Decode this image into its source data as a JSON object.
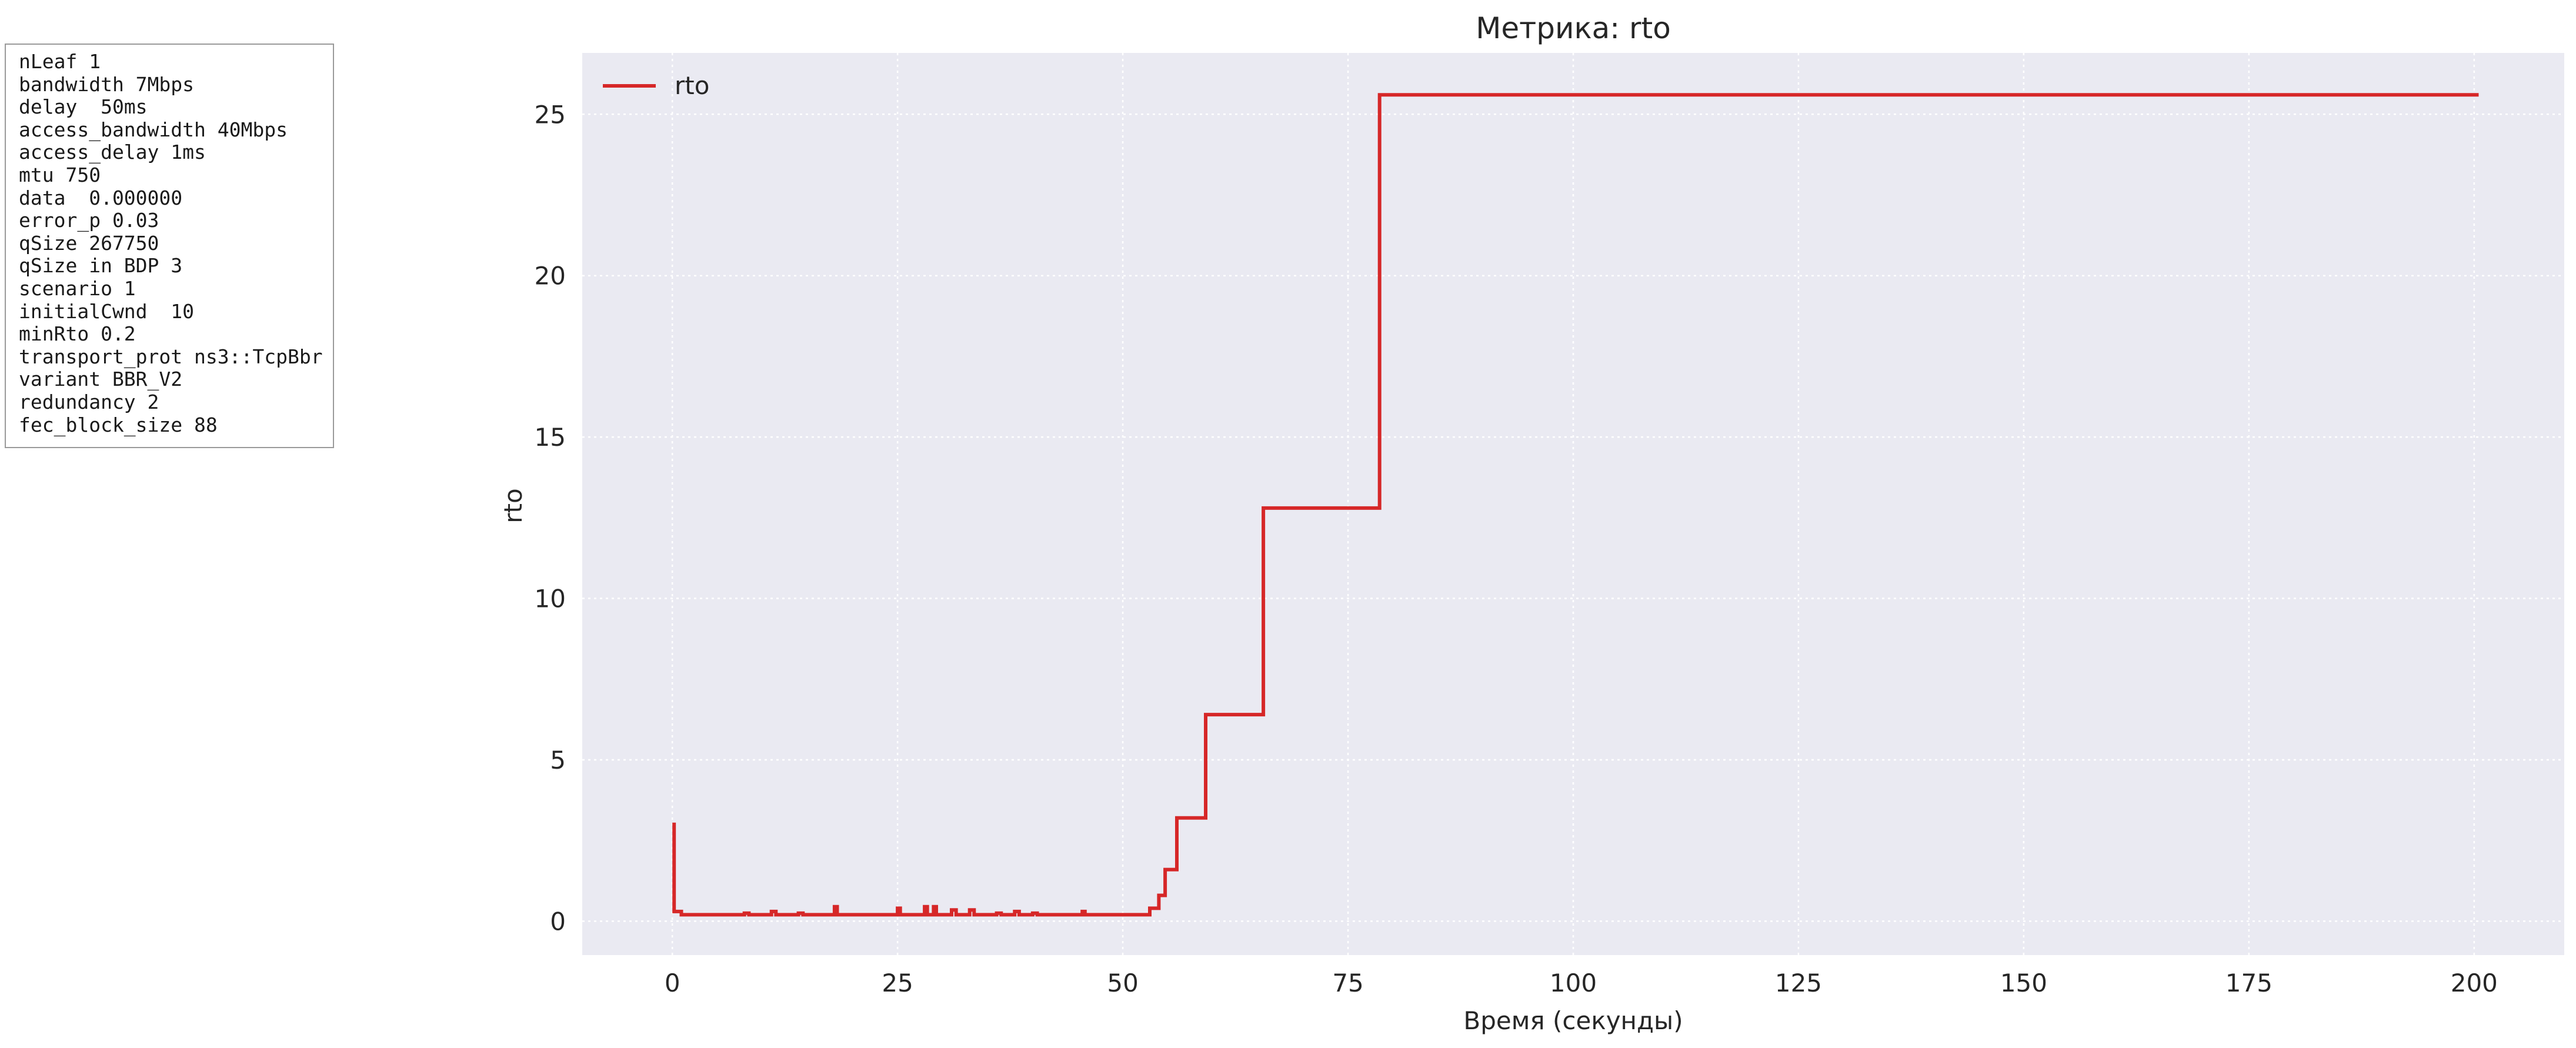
{
  "params": [
    "nLeaf 1",
    "bandwidth 7Mbps",
    "delay  50ms",
    "access_bandwidth 40Mbps",
    "access_delay 1ms",
    "mtu 750",
    "data  0.000000",
    "error_p 0.03",
    "qSize 267750",
    "qSize in BDP 3",
    "scenario 1",
    "initialCwnd  10",
    "minRto 0.2",
    "transport_prot ns3::TcpBbr",
    "variant BBR_V2",
    "redundancy 2",
    "fec_block_size 88"
  ],
  "chart_data": {
    "type": "line",
    "title": "Метрика: rto",
    "xlabel": "Время (секунды)",
    "ylabel": "rto",
    "xlim": [
      -10,
      210
    ],
    "ylim": [
      -1.05,
      26.9
    ],
    "xticks": [
      0,
      25,
      50,
      75,
      100,
      125,
      150,
      175,
      200
    ],
    "xtick_labels": [
      "0",
      "25",
      "50",
      "75",
      "100",
      "125",
      "150",
      "175",
      "200"
    ],
    "yticks": [
      0,
      5,
      10,
      15,
      20,
      25
    ],
    "ytick_labels": [
      "0",
      "5",
      "10",
      "15",
      "20",
      "25"
    ],
    "grid": true,
    "legend_position": "top-left",
    "series": [
      {
        "name": "rto",
        "color": "#d62728",
        "step": true,
        "x": [
          0,
          0.2,
          1,
          8,
          8.5,
          9,
          11,
          11.5,
          12,
          14,
          14.5,
          18,
          18.3,
          18.6,
          25,
          25.3,
          25.6,
          28,
          28.3,
          28.6,
          29,
          29.3,
          29.6,
          31,
          31.5,
          32,
          33,
          33.5,
          34,
          36,
          36.5,
          38,
          38.5,
          40,
          40.5,
          45.5,
          45.8,
          53,
          53.5,
          54,
          54.7,
          56,
          59.2,
          65.6,
          78.5,
          200.5
        ],
        "y": [
          3.0,
          0.3,
          0.2,
          0.25,
          0.2,
          0.2,
          0.3,
          0.2,
          0.2,
          0.25,
          0.2,
          0.45,
          0.2,
          0.2,
          0.4,
          0.2,
          0.2,
          0.45,
          0.2,
          0.2,
          0.45,
          0.2,
          0.2,
          0.35,
          0.2,
          0.2,
          0.35,
          0.2,
          0.2,
          0.25,
          0.2,
          0.3,
          0.2,
          0.25,
          0.2,
          0.3,
          0.2,
          0.4,
          0.4,
          0.8,
          1.6,
          3.2,
          6.4,
          12.8,
          25.6,
          25.6
        ]
      }
    ]
  }
}
